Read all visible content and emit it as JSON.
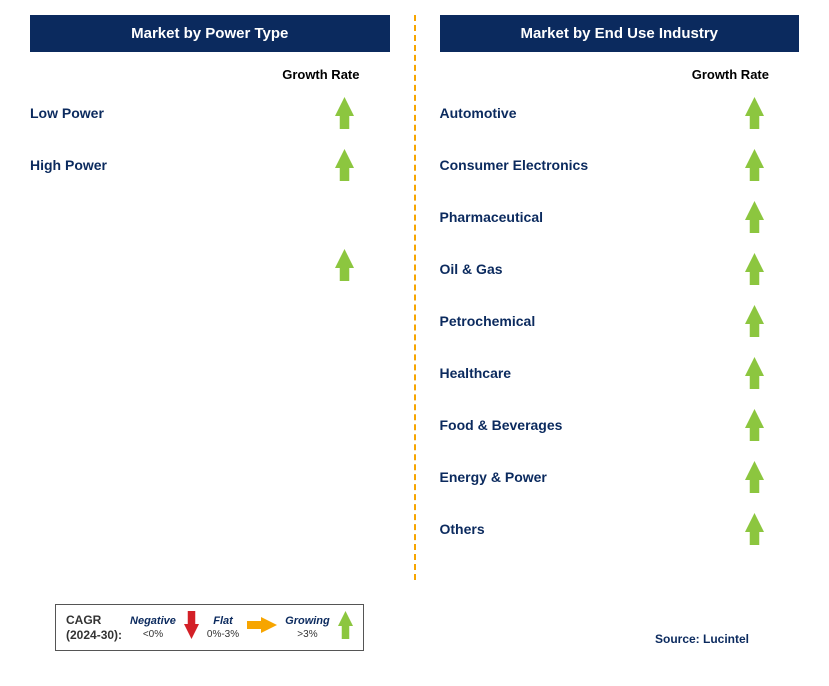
{
  "colors": {
    "header_bg": "#0b2a5e",
    "header_text": "#ffffff",
    "label_text": "#0b2a5e",
    "growth_label": "#000000",
    "divider": "#f7a500",
    "arrow_green": "#8cc63f",
    "arrow_red": "#d32027",
    "arrow_yellow": "#f7a500",
    "background": "#ffffff",
    "legend_border": "#555555"
  },
  "left": {
    "header": "Market by Power Type",
    "growth_label": "Growth Rate",
    "items": [
      {
        "label": "Low Power",
        "direction": "up"
      },
      {
        "label": "High Power",
        "direction": "up"
      },
      {
        "label": "",
        "direction": "none"
      },
      {
        "label": "",
        "direction": "up"
      }
    ]
  },
  "right": {
    "header": "Market by End Use Industry",
    "growth_label": "Growth Rate",
    "items": [
      {
        "label": "Automotive",
        "direction": "up"
      },
      {
        "label": "Consumer Electronics",
        "direction": "up"
      },
      {
        "label": "Pharmaceutical",
        "direction": "up"
      },
      {
        "label": "Oil & Gas",
        "direction": "up"
      },
      {
        "label": "Petrochemical",
        "direction": "up"
      },
      {
        "label": "Healthcare",
        "direction": "up"
      },
      {
        "label": "Food & Beverages",
        "direction": "up"
      },
      {
        "label": "Energy & Power",
        "direction": "up"
      },
      {
        "label": "Others",
        "direction": "up"
      }
    ]
  },
  "legend": {
    "title_line1": "CAGR",
    "title_line2": "(2024-30):",
    "negative_label": "Negative",
    "negative_range": "<0%",
    "flat_label": "Flat",
    "flat_range": "0%-3%",
    "growing_label": "Growing",
    "growing_range": ">3%"
  },
  "source": "Source: Lucintel",
  "arrow_style": {
    "width": 18,
    "height": 30,
    "shaft_width": 9,
    "head_width": 18
  }
}
